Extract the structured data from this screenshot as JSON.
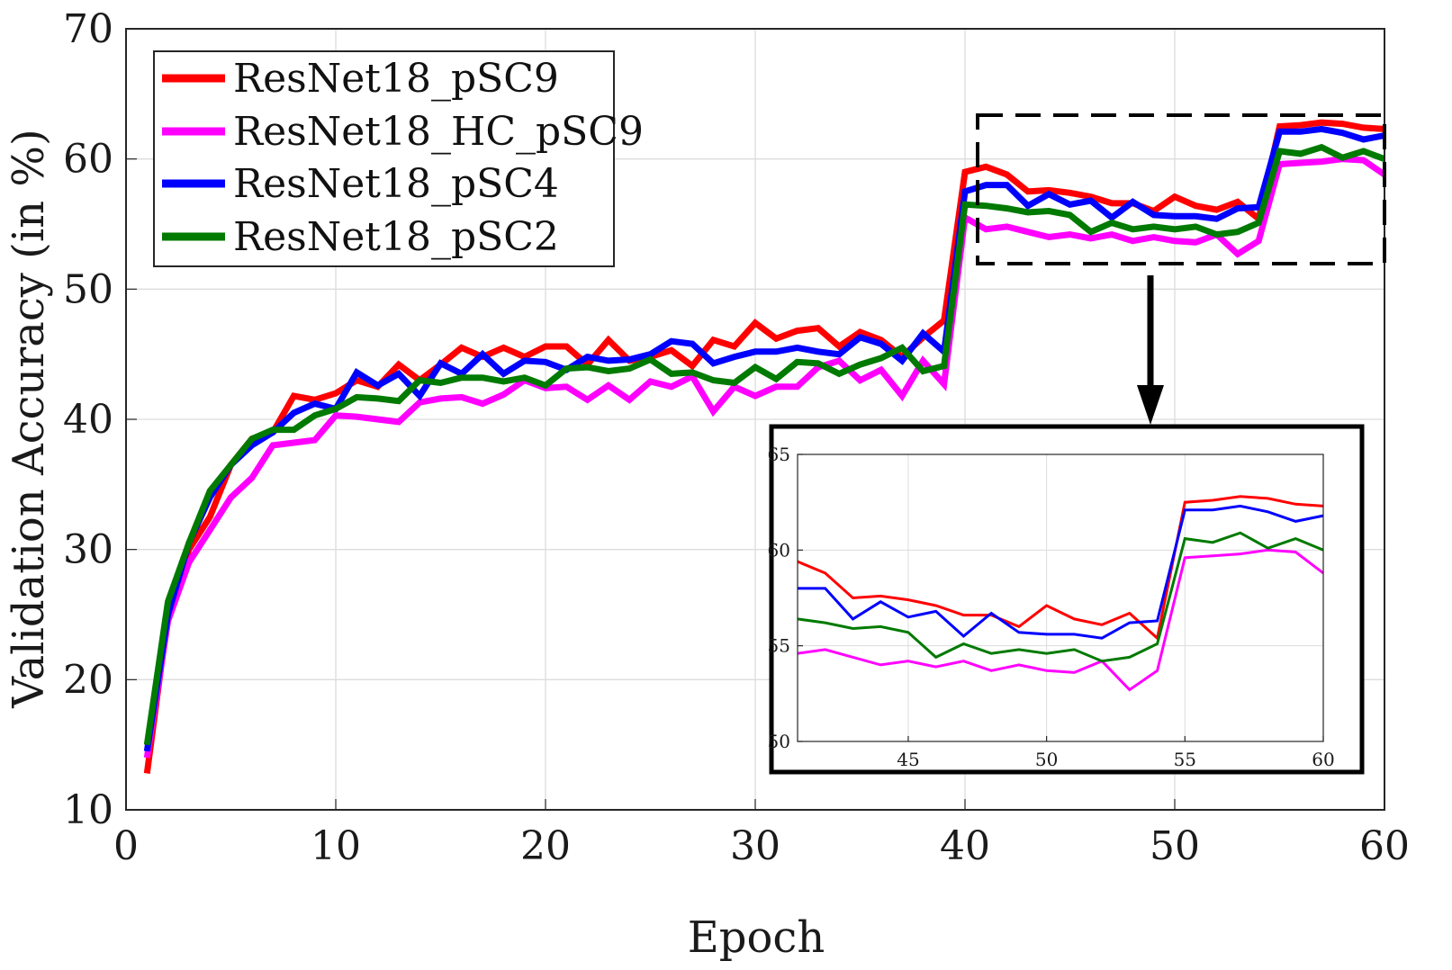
{
  "chart_data": [
    {
      "type": "line",
      "xlabel": "Epoch",
      "ylabel": "Validation Accuracy (in %)",
      "xlim": [
        0,
        60
      ],
      "ylim": [
        10,
        70
      ],
      "xticks": [
        0,
        10,
        20,
        30,
        40,
        50,
        60
      ],
      "yticks": [
        10,
        20,
        30,
        40,
        50,
        60,
        70
      ],
      "grid": true,
      "legend_position": "top-left",
      "x": [
        1,
        2,
        3,
        4,
        5,
        6,
        7,
        8,
        9,
        10,
        11,
        12,
        13,
        14,
        15,
        16,
        17,
        18,
        19,
        20,
        21,
        22,
        23,
        24,
        25,
        26,
        27,
        28,
        29,
        30,
        31,
        32,
        33,
        34,
        35,
        36,
        37,
        38,
        39,
        40,
        41,
        42,
        43,
        44,
        45,
        46,
        47,
        48,
        49,
        50,
        51,
        52,
        53,
        54,
        55,
        56,
        57,
        58,
        59,
        60
      ],
      "series": [
        {
          "name": "ResNet18_pSC9",
          "color": "#ff0000",
          "values": [
            12.8,
            25,
            30,
            32.5,
            36.5,
            38.5,
            39,
            41.8,
            41.5,
            42,
            43,
            42.5,
            44.2,
            43,
            44.2,
            45.5,
            44.8,
            45.5,
            44.8,
            45.6,
            45.6,
            44.2,
            46.1,
            44.5,
            44.8,
            45.3,
            44.1,
            46.1,
            45.6,
            47.4,
            46.2,
            46.8,
            47,
            45.6,
            46.7,
            46.1,
            44.8,
            46.3,
            47.6,
            59.0,
            59.4,
            58.8,
            57.5,
            57.6,
            57.4,
            57.1,
            56.6,
            56.6,
            56,
            57.1,
            56.4,
            56.1,
            56.7,
            55.4,
            62.5,
            62.6,
            62.8,
            62.7,
            62.4,
            62.3
          ]
        },
        {
          "name": "ResNet18_HC_pSC9",
          "color": "#ff00ff",
          "values": [
            14,
            24.5,
            29,
            31.5,
            34,
            35.5,
            38,
            38.2,
            38.4,
            40.3,
            40.2,
            40,
            39.8,
            41.3,
            41.6,
            41.7,
            41.2,
            41.9,
            43,
            42.4,
            42.5,
            41.5,
            42.6,
            41.5,
            42.9,
            42.5,
            43.3,
            40.6,
            42.5,
            41.8,
            42.5,
            42.5,
            44,
            44.5,
            43,
            43.8,
            41.8,
            44.5,
            42.7,
            55.5,
            54.6,
            54.8,
            54.4,
            54,
            54.2,
            53.9,
            54.2,
            53.7,
            54,
            53.7,
            53.6,
            54.2,
            52.7,
            53.7,
            59.6,
            59.7,
            59.8,
            60,
            59.9,
            58.8
          ]
        },
        {
          "name": "ResNet18_pSC4",
          "color": "#0000ff",
          "values": [
            14.5,
            25,
            30.5,
            34,
            36.5,
            38,
            39,
            40.5,
            41.2,
            40.8,
            43.6,
            42.6,
            43.5,
            41.8,
            44.3,
            43.5,
            45,
            43.5,
            44.5,
            44.4,
            43.8,
            44.8,
            44.5,
            44.6,
            45,
            46,
            45.8,
            44.3,
            44.8,
            45.2,
            45.2,
            45.5,
            45.2,
            45,
            46.3,
            45.8,
            44.5,
            46.6,
            45.2,
            57.5,
            58.0,
            58.0,
            56.4,
            57.3,
            56.5,
            56.8,
            55.5,
            56.7,
            55.7,
            55.6,
            55.6,
            55.4,
            56.2,
            56.3,
            62.1,
            62.1,
            62.3,
            62,
            61.5,
            61.8
          ]
        },
        {
          "name": "ResNet18_pSC2",
          "color": "#007a00",
          "values": [
            15,
            26,
            30.5,
            34.5,
            36.5,
            38.5,
            39.2,
            39.2,
            40.3,
            40.8,
            41.7,
            41.6,
            41.4,
            43,
            42.8,
            43.2,
            43.2,
            42.9,
            43.2,
            42.6,
            43.9,
            44,
            43.7,
            43.9,
            44.6,
            43.5,
            43.6,
            43,
            42.8,
            44,
            43.1,
            44.4,
            44.3,
            43.5,
            44.2,
            44.7,
            45.5,
            43.7,
            44.1,
            56.5,
            56.4,
            56.2,
            55.9,
            56.0,
            55.7,
            54.4,
            55.1,
            54.6,
            54.8,
            54.6,
            54.8,
            54.2,
            54.4,
            55.1,
            60.6,
            60.4,
            60.9,
            60.1,
            60.6,
            60.0
          ]
        }
      ]
    },
    {
      "type": "line",
      "inset": true,
      "xlim": [
        41,
        60
      ],
      "ylim": [
        50,
        65
      ],
      "xticks": [
        45,
        50,
        55,
        60
      ],
      "yticks": [
        50,
        55,
        60,
        65
      ],
      "grid": true,
      "x": [
        41,
        42,
        43,
        44,
        45,
        46,
        47,
        48,
        49,
        50,
        51,
        52,
        53,
        54,
        55,
        56,
        57,
        58,
        59,
        60
      ],
      "series": [
        {
          "color": "#ff0000",
          "values": [
            59.4,
            58.8,
            57.5,
            57.6,
            57.4,
            57.1,
            56.6,
            56.6,
            56,
            57.1,
            56.4,
            56.1,
            56.7,
            55.4,
            62.5,
            62.6,
            62.8,
            62.7,
            62.4,
            62.3
          ]
        },
        {
          "color": "#ff00ff",
          "values": [
            54.6,
            54.8,
            54.4,
            54,
            54.2,
            53.9,
            54.2,
            53.7,
            54,
            53.7,
            53.6,
            54.2,
            52.7,
            53.7,
            59.6,
            59.7,
            59.8,
            60,
            59.9,
            58.8
          ]
        },
        {
          "color": "#0000ff",
          "values": [
            58.0,
            58.0,
            56.4,
            57.3,
            56.5,
            56.8,
            55.5,
            56.7,
            55.7,
            55.6,
            55.6,
            55.4,
            56.2,
            56.3,
            62.1,
            62.1,
            62.3,
            62,
            61.5,
            61.8
          ]
        },
        {
          "color": "#007a00",
          "values": [
            56.4,
            56.2,
            55.9,
            56.0,
            55.7,
            54.4,
            55.1,
            54.6,
            54.8,
            54.6,
            54.8,
            54.2,
            54.4,
            55.1,
            60.6,
            60.4,
            60.9,
            60.1,
            60.6,
            60.0
          ]
        }
      ]
    }
  ]
}
